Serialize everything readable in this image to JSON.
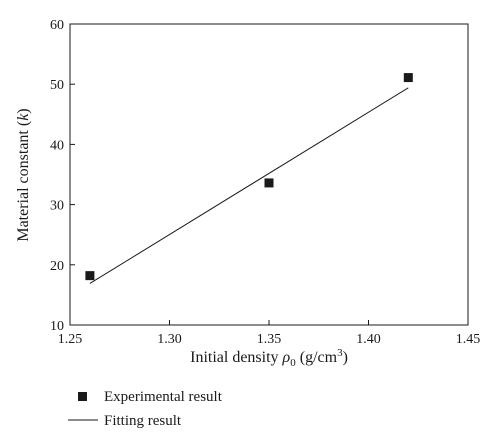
{
  "chart_data": {
    "type": "scatter",
    "xlabel": {
      "prefix": "Initial density ",
      "symbol": "ρ",
      "subscript": "0",
      "unit_open": " (g/cm",
      "unit_sup": "3",
      "unit_close": ")"
    },
    "ylabel": {
      "prefix": "Material constant (",
      "variable": "k",
      "suffix": ")"
    },
    "xlim": [
      1.25,
      1.45
    ],
    "ylim": [
      10,
      60
    ],
    "xticks": [
      1.25,
      1.3,
      1.35,
      1.4,
      1.45
    ],
    "xtick_labels": [
      "1.25",
      "1.30",
      "1.35",
      "1.40",
      "1.45"
    ],
    "yticks": [
      10,
      20,
      30,
      40,
      50,
      60
    ],
    "ytick_labels": [
      "10",
      "20",
      "30",
      "40",
      "50",
      "60"
    ],
    "grid": false,
    "legend_position": "below",
    "series": [
      {
        "name": "Experimental result",
        "marker": "square",
        "x": [
          1.26,
          1.35,
          1.42
        ],
        "y": [
          18.2,
          33.6,
          51.1
        ]
      },
      {
        "name": "Fitting result",
        "kind": "line",
        "x": [
          1.26,
          1.42
        ],
        "y": [
          16.9,
          49.4
        ]
      }
    ]
  },
  "colors": {
    "marker": "#1a1a1a",
    "line": "#1a1a1a",
    "axis": "#1a1a1a"
  }
}
